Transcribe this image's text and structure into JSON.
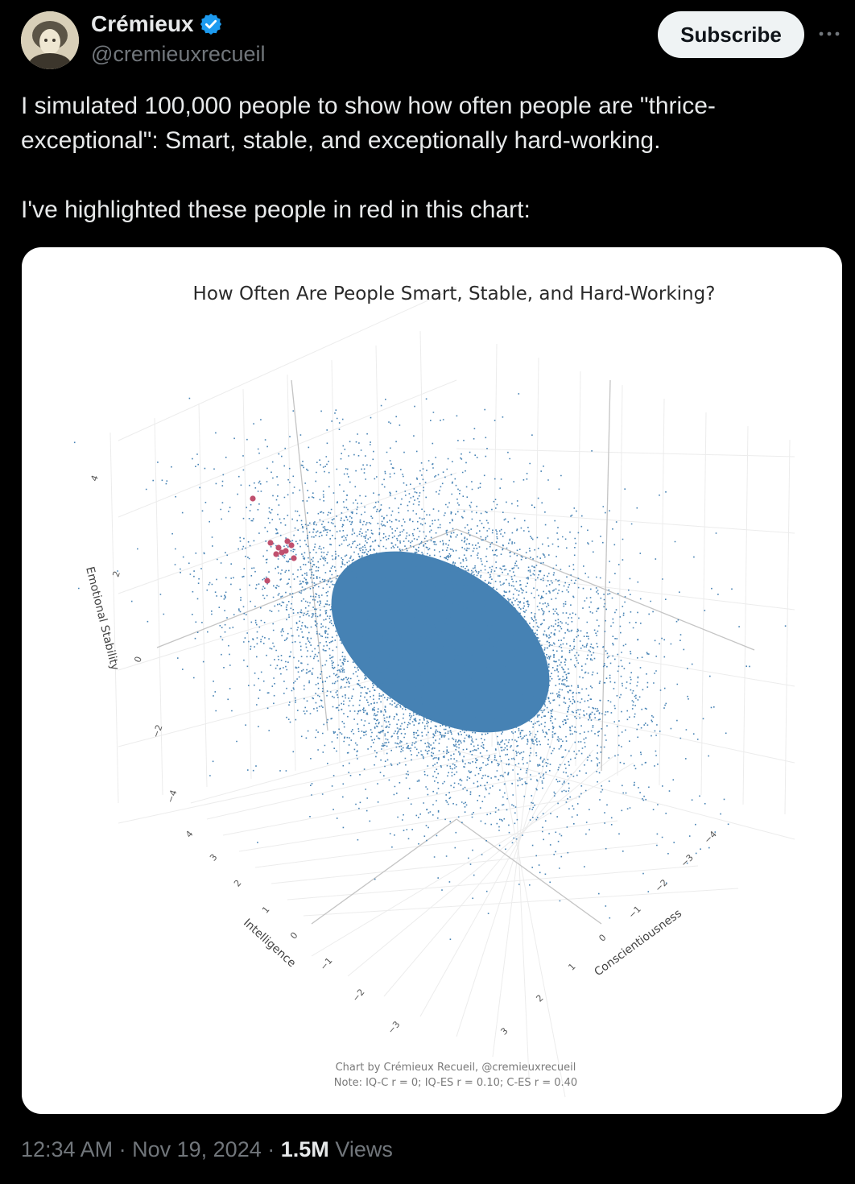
{
  "author": {
    "display_name": "Crémieux",
    "handle": "@cremieuxrecueil",
    "verified_icon": "verified-badge-icon",
    "verified_color": "#1d9bf0"
  },
  "actions": {
    "subscribe_label": "Subscribe",
    "more_icon": "more-horizontal-icon"
  },
  "tweet": {
    "paragraph_1": "I simulated 100,000 people to show how often people are \"thrice-exceptional\": Smart, stable, and exceptionally hard-working.",
    "paragraph_2": "I've highlighted these people in red in this chart:"
  },
  "meta": {
    "time": "12:34 AM",
    "separator": "·",
    "date": "Nov 19, 2024",
    "views_count": "1.5M",
    "views_label": "Views"
  },
  "chart_data": {
    "type": "scatter",
    "title": "How Often Are People Smart, Stable, and Hard-Working?",
    "axes": {
      "x": {
        "label": "Intelligence",
        "ticks": [
          "4",
          "3",
          "2",
          "1",
          "0",
          "−1",
          "−2",
          "−3"
        ]
      },
      "y": {
        "label": "Conscientiousness",
        "ticks": [
          "−4",
          "−3",
          "−2",
          "−1",
          "0",
          "1",
          "2",
          "3"
        ]
      },
      "z": {
        "label": "Emotional Stability",
        "ticks": [
          "4",
          "2",
          "0",
          "−2",
          "−4"
        ]
      }
    },
    "series": [
      {
        "n": 100000,
        "color": "#4682b4"
      },
      {
        "color": "#c0506e"
      }
    ],
    "correlations": {
      "IQ-C": 0,
      "IQ-ES": 0.1,
      "C-ES": 0.4
    },
    "credit": "Chart by Crémieux Recueil, @cremieuxrecueil",
    "note": "Note: IQ-C r = 0; IQ-ES r = 0.10; C-ES r = 0.40"
  }
}
